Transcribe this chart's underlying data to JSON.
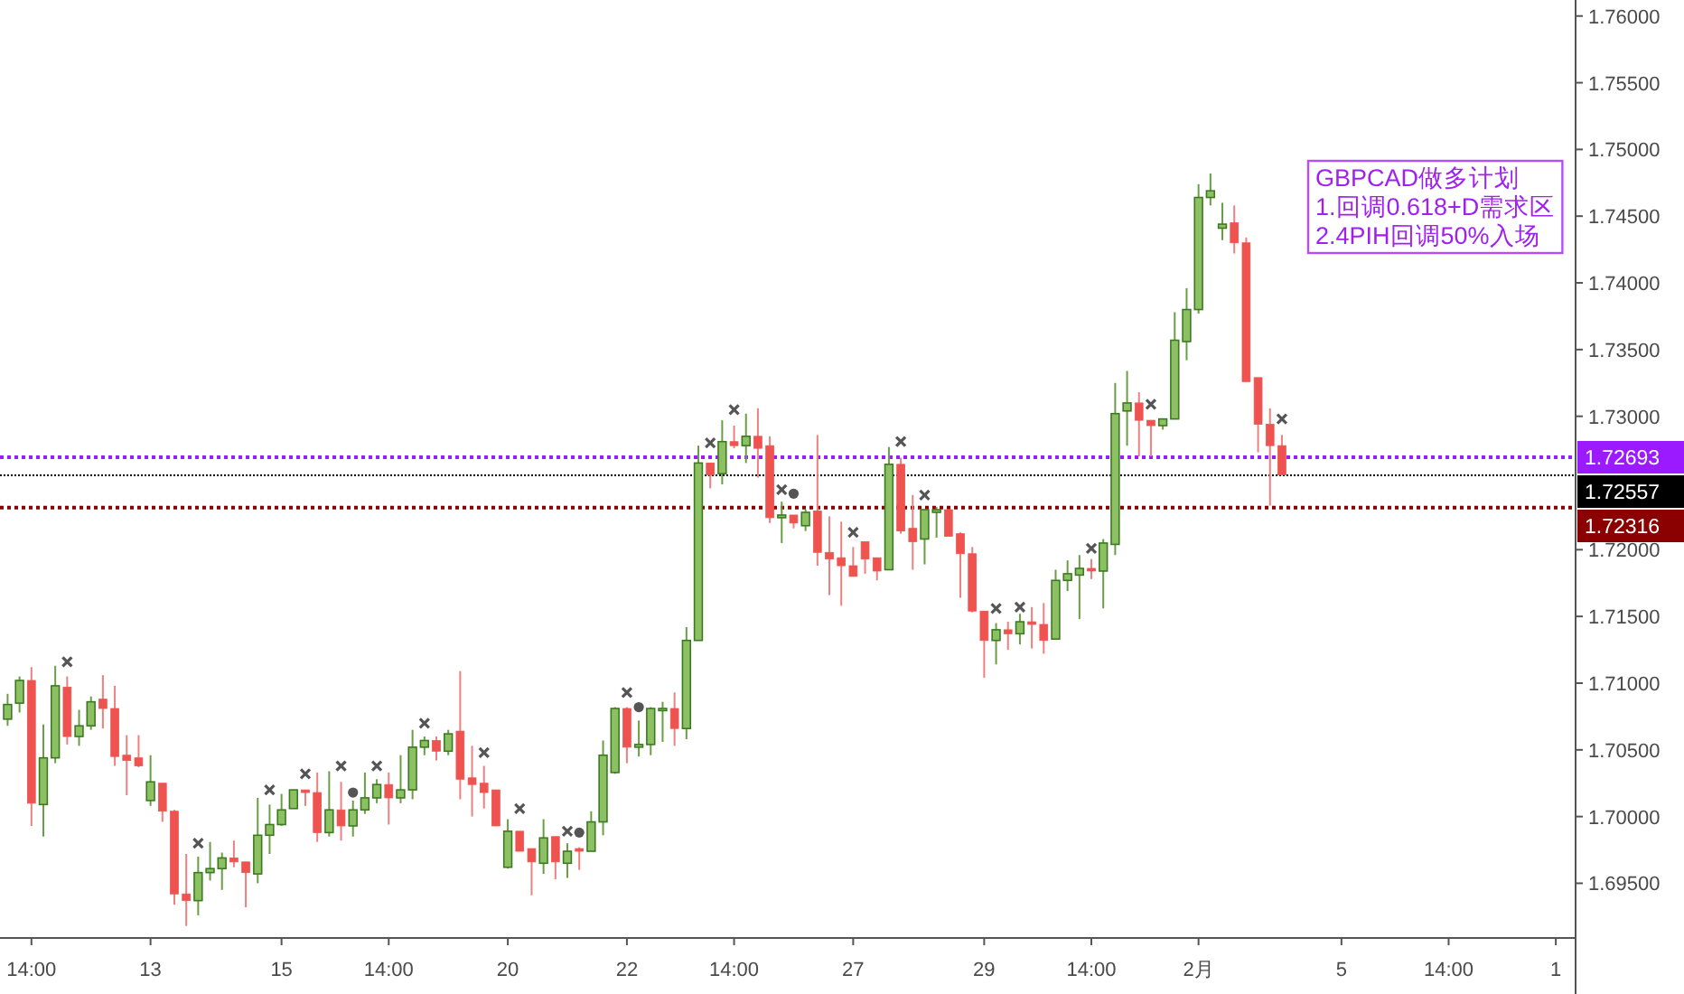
{
  "chart_data": {
    "type": "candlestick",
    "ylim": [
      1.6909,
      1.7612
    ],
    "yticks": [
      {
        "value": 1.695,
        "label": "1.69500"
      },
      {
        "value": 1.7,
        "label": "1.70000"
      },
      {
        "value": 1.705,
        "label": "1.70500"
      },
      {
        "value": 1.71,
        "label": "1.71000"
      },
      {
        "value": 1.715,
        "label": "1.71500"
      },
      {
        "value": 1.72,
        "label": "1.72000"
      },
      {
        "value": 1.73,
        "label": "1.73000"
      },
      {
        "value": 1.735,
        "label": "1.73500"
      },
      {
        "value": 1.74,
        "label": "1.74000"
      },
      {
        "value": 1.745,
        "label": "1.74500"
      },
      {
        "value": 1.75,
        "label": "1.75000"
      },
      {
        "value": 1.755,
        "label": "1.75500"
      },
      {
        "value": 1.76,
        "label": "1.76000"
      }
    ],
    "categories": [
      null,
      null,
      "14:00",
      null,
      null,
      null,
      null,
      null,
      null,
      null,
      null,
      null,
      "13",
      null,
      null,
      null,
      null,
      null,
      null,
      null,
      null,
      null,
      null,
      "15",
      null,
      null,
      null,
      null,
      null,
      null,
      null,
      null,
      "14:00",
      null,
      null,
      null,
      null,
      null,
      null,
      null,
      null,
      null,
      "20",
      null,
      null,
      null,
      null,
      null,
      null,
      null,
      null,
      null,
      "22",
      null,
      null,
      null,
      null,
      null,
      null,
      null,
      null,
      "14:00",
      null,
      null,
      null,
      null,
      null,
      null,
      null,
      null,
      null,
      "27",
      null,
      null,
      null,
      null,
      null,
      null,
      null,
      null,
      null,
      null,
      "29",
      null,
      null,
      null,
      null,
      null,
      null,
      null,
      null,
      "14:00",
      null,
      null,
      null,
      null,
      null,
      null,
      null,
      null,
      "2月",
      null,
      null,
      null,
      null,
      null,
      null,
      null,
      null,
      null,
      null,
      null,
      "5",
      null,
      null,
      null,
      null,
      null,
      null,
      null,
      null,
      "14:00",
      null,
      null,
      null,
      null,
      null,
      null,
      null,
      null,
      "1",
      null
    ],
    "ohlc": [
      [
        1.7073,
        1.7092,
        1.7068,
        1.7084
      ],
      [
        1.7085,
        1.7105,
        1.7078,
        1.7102
      ],
      [
        1.7102,
        1.7112,
        1.6993,
        1.701
      ],
      [
        1.7009,
        1.7069,
        1.6985,
        1.7044
      ],
      [
        1.7044,
        1.7113,
        1.704,
        1.7098
      ],
      [
        1.7097,
        1.7105,
        1.7054,
        1.706
      ],
      [
        1.706,
        1.708,
        1.7053,
        1.7068
      ],
      [
        1.7068,
        1.709,
        1.7065,
        1.7086
      ],
      [
        1.7088,
        1.7106,
        1.7066,
        1.7081
      ],
      [
        1.7081,
        1.7098,
        1.7038,
        1.7045
      ],
      [
        1.7046,
        1.7061,
        1.7016,
        1.7042
      ],
      [
        1.7044,
        1.7061,
        1.7037,
        1.7038
      ],
      [
        1.7012,
        1.7046,
        1.7008,
        1.7026
      ],
      [
        1.7025,
        1.7025,
        1.6996,
        1.7004
      ],
      [
        1.7004,
        1.7005,
        1.6934,
        1.6942
      ],
      [
        1.6942,
        1.6972,
        1.6918,
        1.6937
      ],
      [
        1.6937,
        1.697,
        1.6926,
        1.6958
      ],
      [
        1.6958,
        1.6981,
        1.6952,
        1.6961
      ],
      [
        1.6961,
        1.6973,
        1.6945,
        1.6969
      ],
      [
        1.6969,
        1.6982,
        1.6962,
        1.6966
      ],
      [
        1.6966,
        1.6966,
        1.6932,
        1.6958
      ],
      [
        1.6957,
        1.7014,
        1.695,
        1.6986
      ],
      [
        1.6986,
        1.7009,
        1.6972,
        1.6994
      ],
      [
        1.6994,
        1.7017,
        1.6993,
        1.7005
      ],
      [
        1.7006,
        1.702,
        1.7006,
        1.702
      ],
      [
        1.702,
        1.702,
        1.7008,
        1.7018
      ],
      [
        1.7018,
        1.7033,
        1.6981,
        1.6988
      ],
      [
        1.6988,
        1.7034,
        1.6985,
        1.7005
      ],
      [
        1.7005,
        1.7026,
        1.6982,
        1.6993
      ],
      [
        1.6993,
        1.7012,
        1.6985,
        1.7005
      ],
      [
        1.7005,
        1.7033,
        1.7002,
        1.7014
      ],
      [
        1.7014,
        1.7028,
        1.701,
        1.7024
      ],
      [
        1.7024,
        1.7033,
        1.6994,
        1.7014
      ],
      [
        1.7014,
        1.7046,
        1.701,
        1.702
      ],
      [
        1.702,
        1.7065,
        1.7013,
        1.7052
      ],
      [
        1.7052,
        1.706,
        1.7046,
        1.7057
      ],
      [
        1.7057,
        1.706,
        1.7042,
        1.7049
      ],
      [
        1.7049,
        1.7065,
        1.7046,
        1.7062
      ],
      [
        1.7064,
        1.7109,
        1.7013,
        1.7028
      ],
      [
        1.7029,
        1.7053,
        1.7,
        1.7024
      ],
      [
        1.7025,
        1.7038,
        1.7006,
        1.7018
      ],
      [
        1.702,
        1.702,
        1.6993,
        1.6993
      ],
      [
        1.6962,
        1.6998,
        1.6961,
        1.6989
      ],
      [
        1.6989,
        1.6989,
        1.6974,
        1.6974
      ],
      [
        1.6976,
        1.6976,
        1.6941,
        1.6966
      ],
      [
        1.6965,
        1.6998,
        1.6957,
        1.6984
      ],
      [
        1.6985,
        1.6985,
        1.6953,
        1.6966
      ],
      [
        1.6965,
        1.698,
        1.6954,
        1.6974
      ],
      [
        1.6976,
        1.6977,
        1.696,
        1.6974
      ],
      [
        1.6974,
        1.7004,
        1.6974,
        1.6996
      ],
      [
        1.6996,
        1.7057,
        1.6986,
        1.7046
      ],
      [
        1.7033,
        1.7082,
        1.7032,
        1.7081
      ],
      [
        1.7081,
        1.7082,
        1.704,
        1.7052
      ],
      [
        1.7052,
        1.7072,
        1.7045,
        1.7054
      ],
      [
        1.7054,
        1.7082,
        1.7046,
        1.7081
      ],
      [
        1.708,
        1.7086,
        1.7056,
        1.7081
      ],
      [
        1.7081,
        1.7093,
        1.7053,
        1.7066
      ],
      [
        1.7066,
        1.7142,
        1.7058,
        1.7132
      ],
      [
        1.7132,
        1.7278,
        1.7132,
        1.7265
      ],
      [
        1.7265,
        1.7265,
        1.7246,
        1.7256
      ],
      [
        1.7257,
        1.7297,
        1.7249,
        1.7281
      ],
      [
        1.7281,
        1.7293,
        1.7276,
        1.7278
      ],
      [
        1.7278,
        1.7302,
        1.7265,
        1.7285
      ],
      [
        1.7285,
        1.7306,
        1.7254,
        1.7276
      ],
      [
        1.7278,
        1.7285,
        1.722,
        1.7224
      ],
      [
        1.7224,
        1.7236,
        1.7205,
        1.7226
      ],
      [
        1.7226,
        1.7226,
        1.7216,
        1.722
      ],
      [
        1.7218,
        1.723,
        1.7214,
        1.7228
      ],
      [
        1.7229,
        1.7286,
        1.7188,
        1.7198
      ],
      [
        1.7198,
        1.7225,
        1.7166,
        1.7193
      ],
      [
        1.7194,
        1.7221,
        1.7158,
        1.7188
      ],
      [
        1.7188,
        1.7202,
        1.718,
        1.718
      ],
      [
        1.7206,
        1.7206,
        1.7182,
        1.7193
      ],
      [
        1.7194,
        1.7194,
        1.7177,
        1.7184
      ],
      [
        1.7185,
        1.7277,
        1.7185,
        1.7264
      ],
      [
        1.7264,
        1.7269,
        1.7212,
        1.7214
      ],
      [
        1.7216,
        1.7241,
        1.7185,
        1.7206
      ],
      [
        1.7208,
        1.723,
        1.7189,
        1.723
      ],
      [
        1.7228,
        1.7232,
        1.7209,
        1.723
      ],
      [
        1.723,
        1.723,
        1.721,
        1.721
      ],
      [
        1.7212,
        1.7213,
        1.7164,
        1.7197
      ],
      [
        1.7197,
        1.7202,
        1.7153,
        1.7154
      ],
      [
        1.7154,
        1.7154,
        1.7104,
        1.7132
      ],
      [
        1.7132,
        1.7145,
        1.7114,
        1.714
      ],
      [
        1.714,
        1.7146,
        1.7125,
        1.7137
      ],
      [
        1.7137,
        1.7152,
        1.7129,
        1.7146
      ],
      [
        1.7146,
        1.7157,
        1.7126,
        1.7144
      ],
      [
        1.7144,
        1.716,
        1.7122,
        1.7132
      ],
      [
        1.7133,
        1.7185,
        1.7133,
        1.7177
      ],
      [
        1.7177,
        1.7192,
        1.7169,
        1.7182
      ],
      [
        1.7181,
        1.7196,
        1.7148,
        1.7186
      ],
      [
        1.7186,
        1.7193,
        1.7178,
        1.7184
      ],
      [
        1.7184,
        1.7208,
        1.7156,
        1.7205
      ],
      [
        1.7204,
        1.7325,
        1.7196,
        1.7302
      ],
      [
        1.7304,
        1.7334,
        1.7278,
        1.731
      ],
      [
        1.731,
        1.7318,
        1.727,
        1.7297
      ],
      [
        1.7297,
        1.7297,
        1.727,
        1.7293
      ],
      [
        1.7293,
        1.7298,
        1.729,
        1.7298
      ],
      [
        1.7298,
        1.7378,
        1.7298,
        1.7357
      ],
      [
        1.7356,
        1.7396,
        1.7342,
        1.738
      ],
      [
        1.738,
        1.7474,
        1.7377,
        1.7464
      ],
      [
        1.7464,
        1.7482,
        1.7458,
        1.7469
      ],
      [
        1.7441,
        1.746,
        1.7432,
        1.7444
      ],
      [
        1.7445,
        1.7458,
        1.7422,
        1.743
      ],
      [
        1.743,
        1.7434,
        1.7326,
        1.7326
      ],
      [
        1.7329,
        1.7329,
        1.7273,
        1.7294
      ],
      [
        1.7294,
        1.7306,
        1.7233,
        1.7278
      ],
      [
        1.7278,
        1.7286,
        1.7256,
        1.7256
      ],
      null,
      null,
      null,
      null,
      null,
      null,
      null,
      null,
      null,
      null,
      null,
      null,
      null,
      null,
      null,
      null,
      null,
      null,
      null,
      null,
      null,
      null,
      null,
      null
    ],
    "series": [
      {
        "type": "scatter",
        "marker": "cross",
        "color": "#555555",
        "values": [
          null,
          null,
          null,
          null,
          null,
          1.7116,
          null,
          null,
          null,
          null,
          null,
          null,
          null,
          null,
          null,
          null,
          1.698,
          null,
          null,
          null,
          null,
          null,
          1.702,
          null,
          null,
          1.7032,
          null,
          null,
          1.7038,
          null,
          null,
          1.7038,
          null,
          null,
          null,
          1.707,
          null,
          null,
          null,
          null,
          1.7048,
          null,
          null,
          1.7006,
          null,
          null,
          null,
          1.6989,
          null,
          null,
          null,
          null,
          1.7093,
          null,
          null,
          null,
          null,
          null,
          null,
          1.728,
          null,
          1.7305,
          null,
          null,
          null,
          1.7245,
          null,
          null,
          null,
          null,
          null,
          1.7213,
          null,
          null,
          null,
          1.7281,
          null,
          1.7241,
          null,
          null,
          null,
          null,
          null,
          1.7156,
          null,
          1.7157,
          null,
          null,
          null,
          null,
          null,
          1.7201,
          null,
          null,
          null,
          null,
          1.7309,
          null,
          null,
          null,
          null,
          null,
          null,
          null,
          null,
          null,
          null,
          1.7298,
          null,
          null,
          null,
          null,
          null,
          null,
          null,
          null,
          null,
          null,
          null,
          null,
          null,
          null,
          null,
          null,
          null,
          null,
          null,
          null,
          null,
          null,
          null,
          null
        ]
      },
      {
        "type": "scatter",
        "marker": "circle",
        "color": "#555555",
        "values": [
          null,
          null,
          null,
          null,
          null,
          null,
          null,
          null,
          null,
          null,
          null,
          null,
          null,
          null,
          null,
          null,
          null,
          null,
          null,
          null,
          null,
          null,
          null,
          null,
          null,
          null,
          null,
          null,
          null,
          1.7018,
          null,
          null,
          null,
          null,
          null,
          null,
          null,
          null,
          null,
          null,
          null,
          null,
          null,
          null,
          null,
          null,
          null,
          null,
          1.6988,
          null,
          null,
          null,
          null,
          1.7082,
          null,
          null,
          null,
          null,
          null,
          null,
          null,
          null,
          null,
          null,
          null,
          null,
          1.7242,
          null,
          null,
          null,
          null,
          null,
          null,
          null,
          null,
          null,
          null,
          null,
          null,
          null,
          null,
          null,
          null,
          null,
          null,
          null,
          null,
          null,
          null,
          null,
          null,
          null,
          null,
          null,
          null,
          null,
          null,
          null,
          null,
          null,
          null,
          null,
          null,
          null,
          null,
          null,
          null,
          null,
          null,
          null,
          null,
          null,
          null,
          null,
          null,
          null,
          null,
          null,
          null,
          null,
          null,
          null,
          null,
          null,
          null,
          null,
          null,
          null,
          null,
          null,
          null,
          null
        ]
      }
    ],
    "ref_lines": [
      {
        "axis": "y",
        "value": 1.72693,
        "label": "1.72693",
        "color": "#9c1aff",
        "line_style": "dotted"
      },
      {
        "axis": "y",
        "value": 1.72557,
        "label": "1.72557",
        "color": "#000000",
        "line_style": "dotted"
      },
      {
        "axis": "y",
        "value": 1.72316,
        "label": "1.72316",
        "color": "#8b0000",
        "line_style": "dotted"
      }
    ],
    "annotations": [
      "GBPCAD做多计划\n1.回调0.618+D需求区\n2.4PIH回调50%入场"
    ]
  }
}
